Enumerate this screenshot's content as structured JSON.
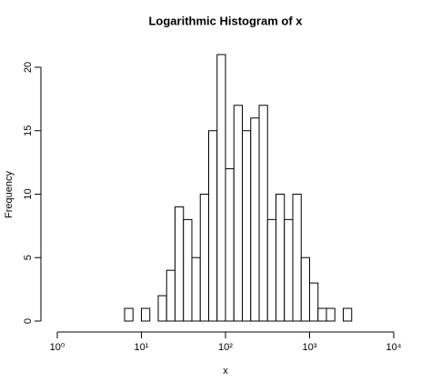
{
  "chart_data": {
    "type": "histogram",
    "title": "Logarithmic Histogram of x",
    "xlabel": "x",
    "ylabel": "Frequency",
    "bins": [
      6.31,
      7.94,
      10,
      12.59,
      15.85,
      19.95,
      25.12,
      31.62,
      39.81,
      50.12,
      63.1,
      79.43,
      100,
      125.89,
      158.49,
      199.53,
      251.19,
      316.23,
      398.11,
      501.19,
      630.96,
      794.33,
      1000,
      1258.93,
      1584.89,
      1995.26,
      2511.89,
      3162.28
    ],
    "values": [
      1,
      0,
      1,
      0,
      2,
      4,
      9,
      8,
      5,
      10,
      15,
      21,
      12,
      17,
      15,
      16,
      17,
      8,
      10,
      8,
      10,
      5,
      3,
      1,
      1,
      0,
      1
    ],
    "color": "#ffffff",
    "edgecolor": "#000000",
    "xscale": "log",
    "xlim": [
      1,
      10000
    ],
    "xticks": [
      {
        "value": 1,
        "label": "10⁰"
      },
      {
        "value": 10,
        "label": "10¹"
      },
      {
        "value": 100,
        "label": "10²"
      },
      {
        "value": 1000,
        "label": "10³"
      },
      {
        "value": 10000,
        "label": "10⁴"
      }
    ],
    "ylim": [
      0,
      21
    ],
    "yticks": [
      0,
      5,
      10,
      15,
      20
    ],
    "grid": false
  }
}
